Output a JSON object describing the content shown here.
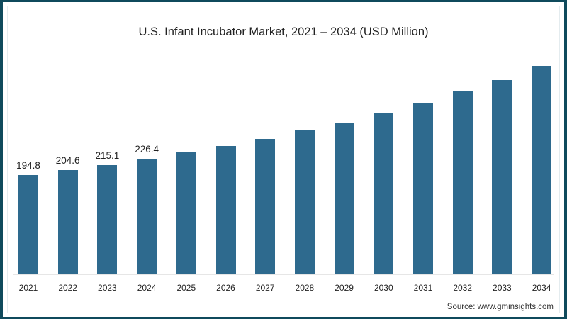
{
  "title": "U.S. Infant Incubator Market, 2021 – 2034 (USD Million)",
  "source": "Source: www.gminsights.com",
  "colors": {
    "bar": "#2e6a8e",
    "frame": "#0f4a5c"
  },
  "chart_data": {
    "type": "bar",
    "title": "U.S. Infant Incubator Market, 2021 – 2034 (USD Million)",
    "xlabel": "",
    "ylabel": "USD Million",
    "categories": [
      "2021",
      "2022",
      "2023",
      "2024",
      "2025",
      "2026",
      "2027",
      "2028",
      "2029",
      "2030",
      "2031",
      "2032",
      "2033",
      "2034"
    ],
    "values": [
      194.8,
      204.6,
      215.1,
      226.4,
      239.7,
      252.3,
      266.3,
      283.1,
      298.5,
      316.7,
      337.8,
      360.2,
      382.6,
      410.6
    ],
    "data_labels": [
      "194.8",
      "204.6",
      "215.1",
      "226.4",
      "",
      "",
      "",
      "",
      "",
      "",
      "",
      "",
      "",
      ""
    ],
    "ylim": [
      0,
      420
    ],
    "grid": false,
    "legend": null
  }
}
